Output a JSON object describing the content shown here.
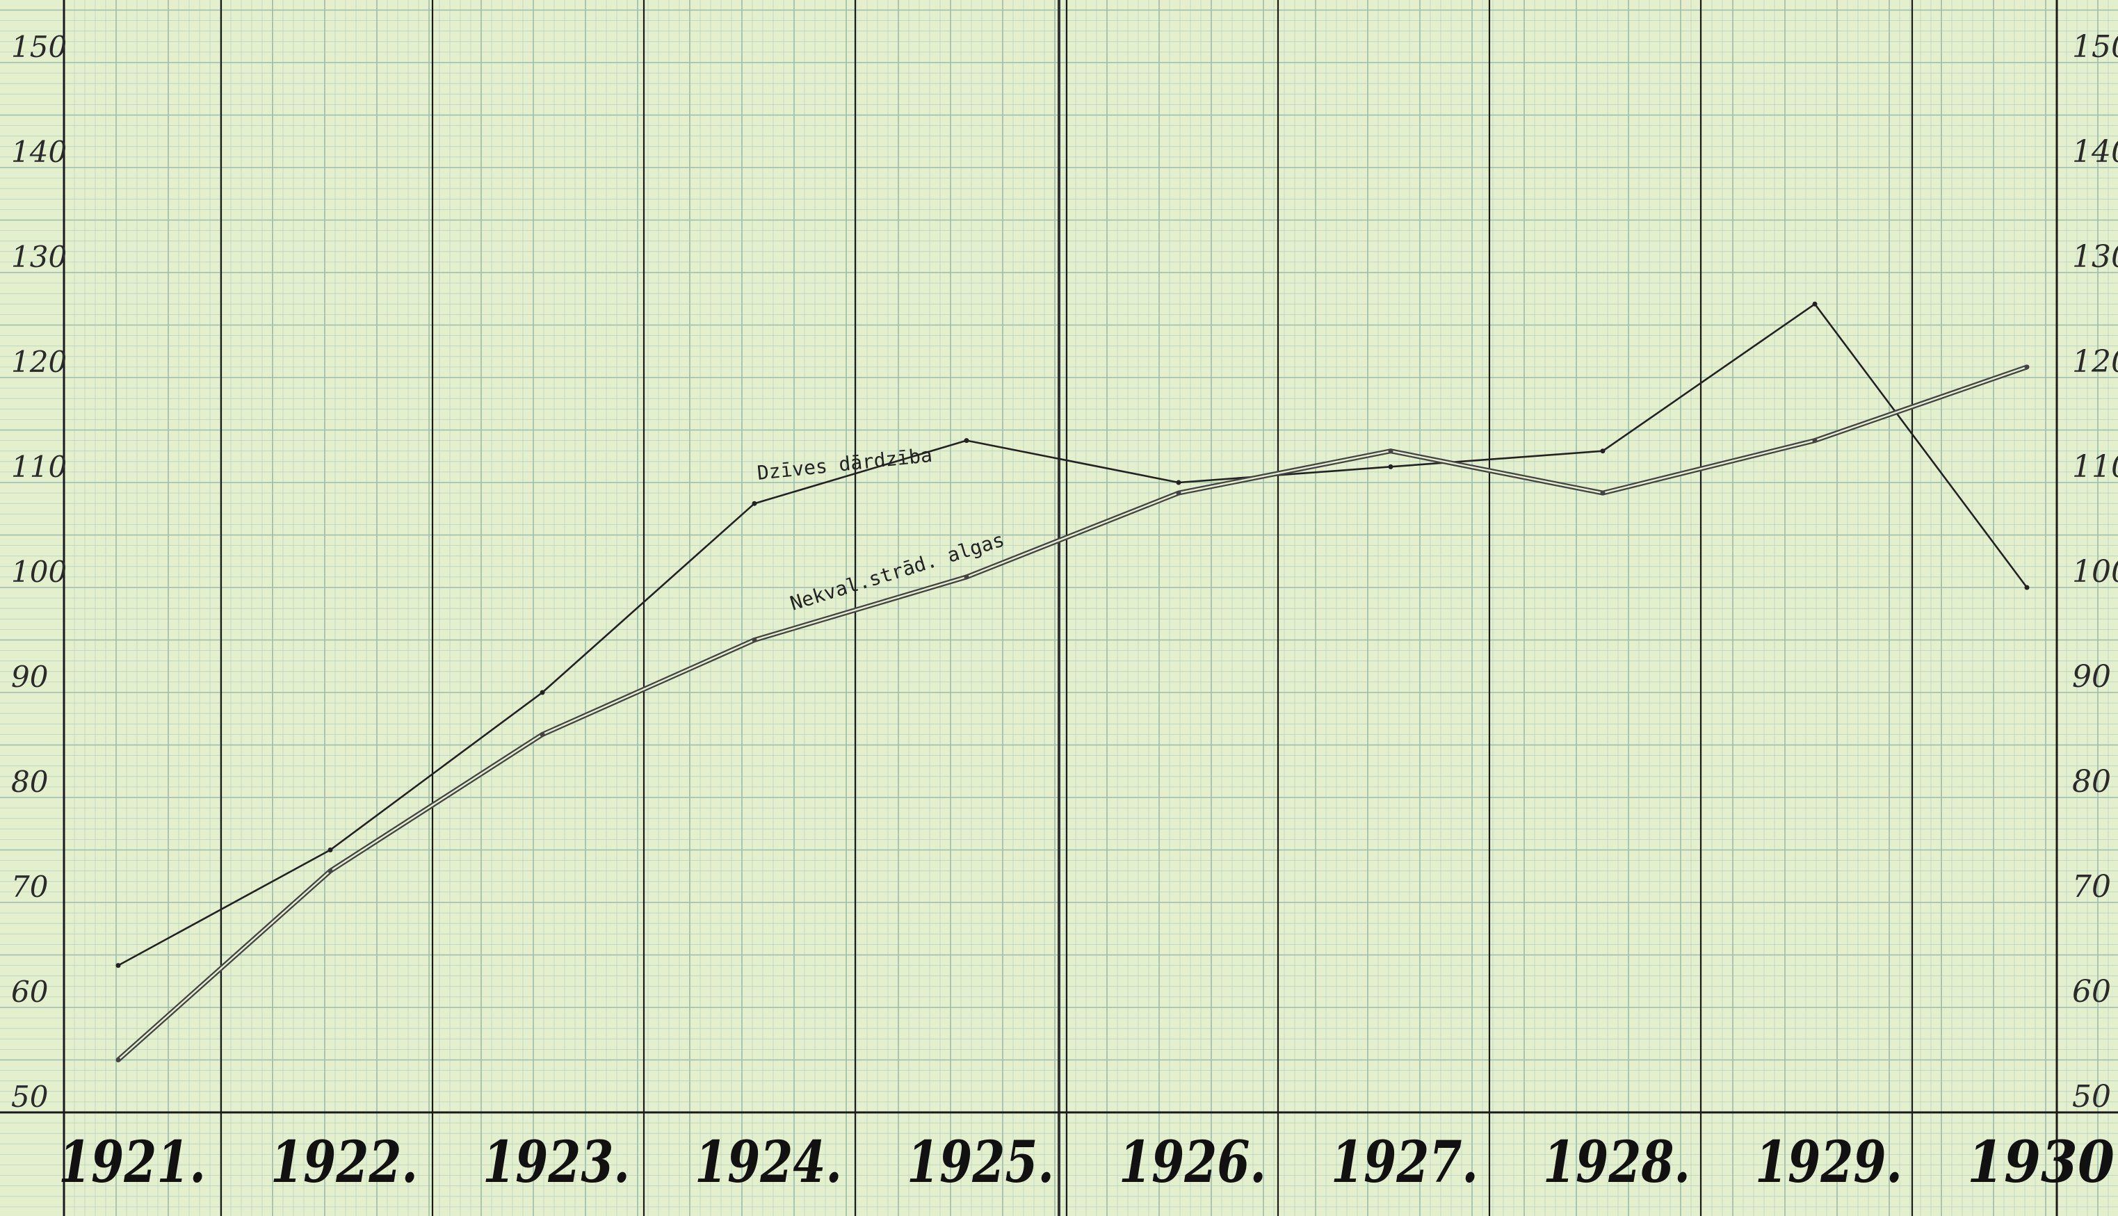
{
  "chart_data": {
    "type": "line",
    "x": [
      1921,
      1922,
      1923,
      1924,
      1925,
      1926,
      1927,
      1928,
      1929,
      1930
    ],
    "x_tick_labels": [
      "1921.",
      "1922.",
      "1923.",
      "1924.",
      "1925.",
      "1926.",
      "1927.",
      "1928.",
      "1929.",
      "1930"
    ],
    "y_ticks": [
      50,
      60,
      70,
      80,
      90,
      100,
      110,
      120,
      130,
      140,
      150
    ],
    "ylim": [
      50,
      155
    ],
    "grid": true,
    "axes": "left and right",
    "series": [
      {
        "name": "Dzīves dārdzība",
        "values": [
          64,
          75,
          90,
          108,
          114,
          110,
          111.5,
          113,
          127,
          100
        ],
        "color": "#222222",
        "style": "single"
      },
      {
        "name": "Nekval.strād. algas",
        "values": [
          55,
          73,
          86,
          95,
          101,
          109,
          113,
          109,
          114,
          121
        ],
        "color": "#444444",
        "style": "double"
      }
    ],
    "colors": {
      "paper": "#e4efce",
      "minor_grid": "#b9d2c0",
      "major_grid": "#9bbcaa",
      "ink": "#1a1a1a"
    }
  }
}
